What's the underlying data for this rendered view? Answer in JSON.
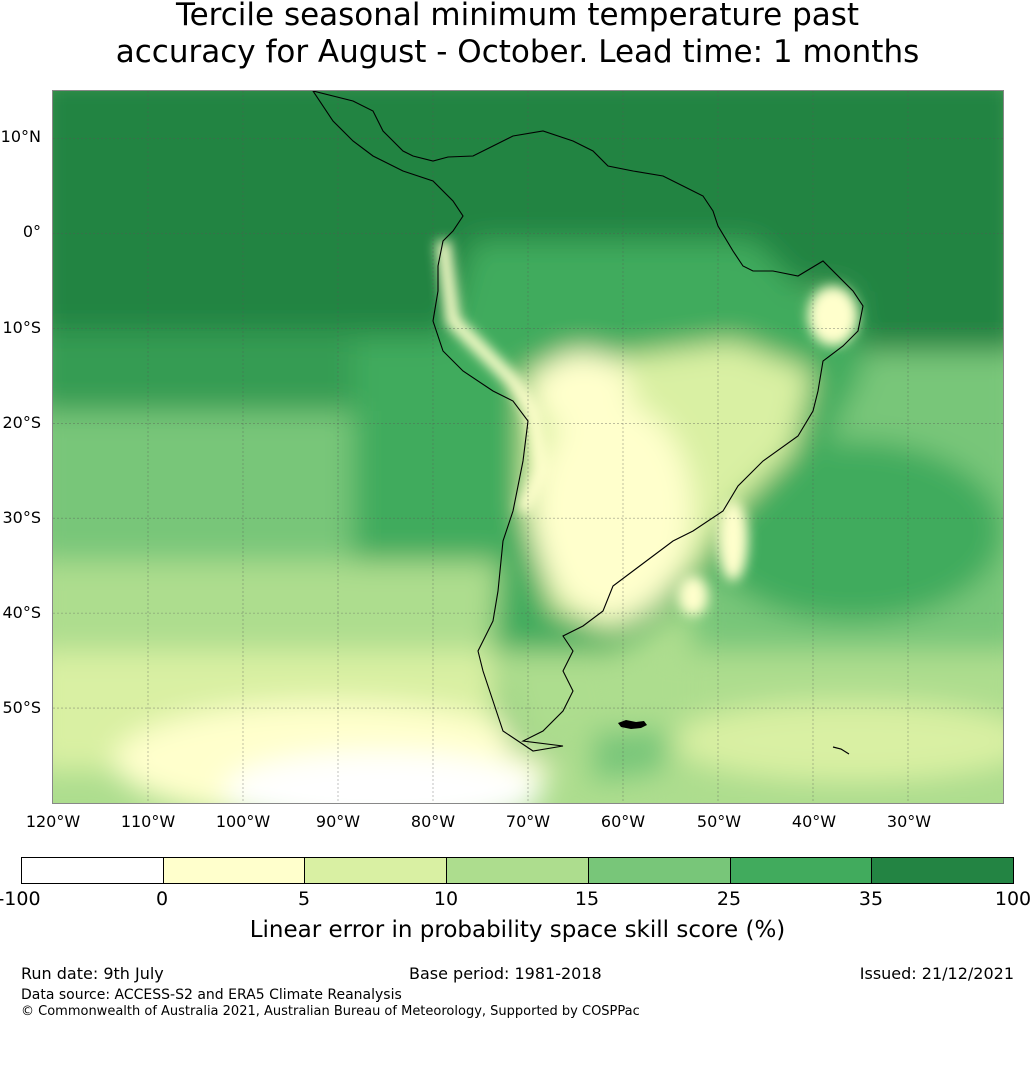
{
  "title": {
    "line1": "Tercile seasonal minimum temperature past",
    "line2": "accuracy for August - October. Lead time: 1 months"
  },
  "map": {
    "lat_labels": [
      "10°N",
      "0°",
      "10°S",
      "20°S",
      "30°S",
      "40°S",
      "50°S"
    ],
    "lon_labels": [
      "120°W",
      "110°W",
      "100°W",
      "90°W",
      "80°W",
      "70°W",
      "60°W",
      "50°W",
      "40°W",
      "30°W"
    ],
    "extent": {
      "lon": [
        -120,
        -20
      ],
      "lat": [
        -60,
        15
      ]
    },
    "grid_lats": [
      10,
      0,
      -10,
      -20,
      -30,
      -40,
      -50
    ],
    "grid_lons": [
      -110,
      -100,
      -90,
      -80,
      -70,
      -60,
      -50,
      -40,
      -30
    ]
  },
  "colorbar": {
    "ticks": [
      "-100",
      "0",
      "5",
      "10",
      "15",
      "25",
      "35",
      "100"
    ],
    "colors": [
      "#ffffff",
      "#ffffcc",
      "#d9f0a3",
      "#addd8e",
      "#78c679",
      "#41ab5d",
      "#238443"
    ],
    "label": "Linear error in probability space skill score (%)"
  },
  "footer": {
    "run_date": "Run date: 9th July",
    "base_period": "Base period: 1981-2018",
    "issued": "Issued: 21/12/2021",
    "data_source": "Data source: ACCESS-S2 and ERA5 Climate Reanalysis",
    "copyright": "© Commonwealth of Australia 2021, Australian Bureau of Meteorology, Supported by COSPPac"
  }
}
